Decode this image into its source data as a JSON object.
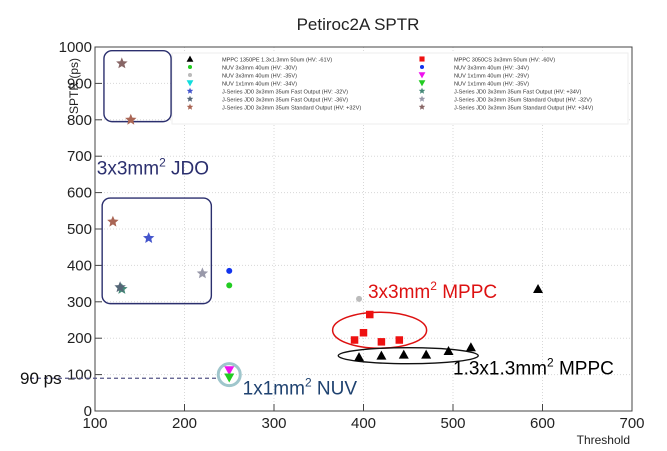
{
  "chart_data": {
    "type": "scatter",
    "title": "Petiroc2A SPTR",
    "xlabel": "Threshold",
    "ylabel": "SPTR (ps)",
    "xlim": [
      100,
      700
    ],
    "ylim": [
      0,
      1000
    ],
    "x_ticks": [
      100,
      200,
      300,
      400,
      500,
      600,
      700
    ],
    "y_ticks": [
      0,
      100,
      200,
      300,
      400,
      500,
      600,
      700,
      800,
      900,
      1000
    ],
    "grid": true,
    "legend_position": "top",
    "series": [
      {
        "name": "MPPC 1350PE 1.3x1.3mm 50um (HV: -61V)",
        "marker": "triangle",
        "color": "#000000",
        "points": [
          [
            395,
            148
          ],
          [
            420,
            152
          ],
          [
            445,
            155
          ],
          [
            470,
            155
          ],
          [
            495,
            165
          ],
          [
            520,
            175
          ],
          [
            595,
            335
          ]
        ]
      },
      {
        "name": "MPPC 3050CS 3x3mm 50um (HV: -60V)",
        "marker": "square",
        "color": "#ee1111",
        "points": [
          [
            390,
            195
          ],
          [
            400,
            215
          ],
          [
            407,
            265
          ],
          [
            420,
            190
          ],
          [
            440,
            195
          ]
        ]
      },
      {
        "name": "NUV 3x3mm 40um (HV: -30V)",
        "marker": "circle",
        "color": "#22cc22",
        "points": [
          [
            250,
            345
          ]
        ]
      },
      {
        "name": "NUV 3x3mm 40um (HV: -34V)",
        "marker": "circle",
        "color": "#1133ee",
        "points": [
          [
            250,
            385
          ]
        ]
      },
      {
        "name": "NUV 3x3mm 40um (HV: -35V)",
        "marker": "circle",
        "color": "#bbbbbb",
        "points": [
          [
            395,
            308
          ]
        ]
      },
      {
        "name": "NUV 1x1mm 40um (HV: -29V)",
        "marker": "triangle-down",
        "color": "#ee11ee",
        "points": [
          [
            250,
            112
          ]
        ]
      },
      {
        "name": "NUV 1x1mm 40um (HV: -34V)",
        "marker": "triangle-down",
        "color": "#11dddd",
        "points": []
      },
      {
        "name": "NUV 1x1mm 40um (HV: -35V)",
        "marker": "triangle-down",
        "color": "#22cc22",
        "points": [
          [
            250,
            92
          ]
        ]
      },
      {
        "name": "J-Series JD0 3x3mm 35um Fast Output (HV: -32V)",
        "marker": "star",
        "color": "#4455cc",
        "points": [
          [
            160,
            475
          ]
        ]
      },
      {
        "name": "J-Series JD0 3x3mm 35um Fast Output (HV: +34V)",
        "marker": "star",
        "color": "#448877",
        "points": [
          [
            130,
            335
          ]
        ]
      },
      {
        "name": "J-Series JD0 3x3mm 35um Fast Output (HV: -36V)",
        "marker": "star",
        "color": "#556677",
        "points": [
          [
            128,
            340
          ]
        ]
      },
      {
        "name": "J-Series JD0 3x3mm 35um Standard Output (HV: -32V)",
        "marker": "star",
        "color": "#9999aa",
        "points": [
          [
            220,
            378
          ]
        ]
      },
      {
        "name": "J-Series JD0 3x3mm 35um Standard Output (HV: +32V)",
        "marker": "star",
        "color": "#aa6655",
        "points": [
          [
            120,
            520
          ],
          [
            140,
            800
          ]
        ]
      },
      {
        "name": "J-Series JD0 3x3mm 35um Standard Output (HV: +34V)",
        "marker": "star",
        "color": "#886666",
        "points": [
          [
            130,
            955
          ]
        ]
      }
    ],
    "annotations": [
      {
        "text": "3x3mm",
        "sup": "2",
        "rest": " JDO",
        "color": "#2b2f6e",
        "x": 102,
        "y": 650
      },
      {
        "text": "3x3mm",
        "sup": "2",
        "rest": " MPPC",
        "color": "#dd1111",
        "x": 405,
        "y": 310
      },
      {
        "text": "1.3x1.3mm",
        "sup": "2",
        "rest": " MPPC",
        "color": "#000000",
        "x": 500,
        "y": 100
      },
      {
        "text": "1x1mm",
        "sup": "2",
        "rest": " NUV",
        "color": "#1f4270",
        "x": 265,
        "y": 45
      }
    ],
    "reference_line": {
      "label": "90 ps",
      "y": 90,
      "x_from": 100,
      "x_to": 250
    }
  }
}
